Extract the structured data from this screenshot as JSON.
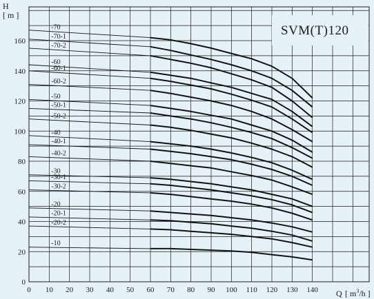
{
  "chart_data": {
    "type": "line",
    "title": "SVM(T)120",
    "xlabel": "Q",
    "xunit_pre": "[ m",
    "xunit_sup": "3",
    "xunit_post": "/h ]",
    "ylabel": "H",
    "yunit": "[ m ]",
    "xlim": [
      0,
      150
    ],
    "ylim": [
      0,
      176
    ],
    "xticks": [
      0,
      10,
      20,
      30,
      40,
      50,
      60,
      70,
      80,
      90,
      100,
      110,
      120,
      130,
      140
    ],
    "yticks": [
      0,
      20,
      40,
      60,
      80,
      100,
      120,
      140,
      160
    ],
    "grid": true,
    "colors": {
      "background": "#e6f1f7",
      "grid": "#1a1a1a",
      "curve": "#111111"
    },
    "series": [
      {
        "name": "-70",
        "thin": [
          [
            0,
            167
          ],
          [
            60,
            162
          ]
        ],
        "thick": [
          [
            60,
            162
          ],
          [
            70,
            160.5
          ],
          [
            80,
            158
          ],
          [
            90,
            155
          ],
          [
            100,
            151.5
          ],
          [
            110,
            148
          ],
          [
            120,
            143
          ],
          [
            130,
            135
          ],
          [
            140,
            122
          ]
        ]
      },
      {
        "name": "-70-1",
        "thin": [
          [
            0,
            161
          ],
          [
            60,
            156
          ]
        ],
        "thick": [
          [
            60,
            156
          ],
          [
            70,
            153.5
          ],
          [
            80,
            150.5
          ],
          [
            90,
            147.5
          ],
          [
            100,
            144
          ],
          [
            110,
            140
          ],
          [
            120,
            135
          ],
          [
            130,
            127
          ],
          [
            140,
            116
          ]
        ]
      },
      {
        "name": "-70-2",
        "thin": [
          [
            0,
            155
          ],
          [
            60,
            150
          ]
        ],
        "thick": [
          [
            60,
            150
          ],
          [
            70,
            147.5
          ],
          [
            80,
            145
          ],
          [
            90,
            142
          ],
          [
            100,
            138
          ],
          [
            110,
            134
          ],
          [
            120,
            129
          ],
          [
            130,
            120
          ],
          [
            140,
            109
          ]
        ]
      },
      {
        "name": "-60",
        "thin": [
          [
            0,
            144
          ],
          [
            60,
            139
          ]
        ],
        "thick": [
          [
            60,
            139
          ],
          [
            70,
            137
          ],
          [
            80,
            135
          ],
          [
            90,
            132
          ],
          [
            100,
            129
          ],
          [
            110,
            125
          ],
          [
            120,
            121
          ],
          [
            130,
            113
          ],
          [
            140,
            103
          ]
        ]
      },
      {
        "name": "-60-1",
        "thin": [
          [
            0,
            140
          ],
          [
            60,
            135
          ]
        ],
        "thick": [
          [
            60,
            135
          ],
          [
            70,
            133
          ],
          [
            80,
            130.5
          ],
          [
            90,
            128
          ],
          [
            100,
            124.5
          ],
          [
            110,
            120.5
          ],
          [
            120,
            116
          ],
          [
            130,
            108
          ],
          [
            140,
            99
          ]
        ]
      },
      {
        "name": "-60-2",
        "thin": [
          [
            0,
            131
          ],
          [
            60,
            127
          ]
        ],
        "thick": [
          [
            60,
            127
          ],
          [
            70,
            125
          ],
          [
            80,
            122.5
          ],
          [
            90,
            120
          ],
          [
            100,
            117
          ],
          [
            110,
            113
          ],
          [
            120,
            108
          ],
          [
            130,
            101
          ],
          [
            140,
            93
          ]
        ]
      },
      {
        "name": "-50",
        "thin": [
          [
            0,
            121
          ],
          [
            60,
            117
          ]
        ],
        "thick": [
          [
            60,
            117
          ],
          [
            70,
            115
          ],
          [
            80,
            113
          ],
          [
            90,
            110.5
          ],
          [
            100,
            108
          ],
          [
            110,
            104
          ],
          [
            120,
            100
          ],
          [
            130,
            94
          ],
          [
            140,
            86
          ]
        ]
      },
      {
        "name": "-50-1",
        "thin": [
          [
            0,
            115
          ],
          [
            60,
            112
          ]
        ],
        "thick": [
          [
            60,
            112
          ],
          [
            70,
            110
          ],
          [
            80,
            108
          ],
          [
            90,
            105.5
          ],
          [
            100,
            102.5
          ],
          [
            110,
            99
          ],
          [
            120,
            95
          ],
          [
            130,
            89
          ],
          [
            140,
            82
          ]
        ]
      },
      {
        "name": "-50-2",
        "thin": [
          [
            0,
            108
          ],
          [
            60,
            104
          ]
        ],
        "thick": [
          [
            60,
            104
          ],
          [
            70,
            102.5
          ],
          [
            80,
            100.5
          ],
          [
            90,
            98
          ],
          [
            100,
            95.5
          ],
          [
            110,
            92
          ],
          [
            120,
            88
          ],
          [
            130,
            83
          ],
          [
            140,
            76
          ]
        ]
      },
      {
        "name": "-40",
        "thin": [
          [
            0,
            97
          ],
          [
            60,
            93
          ]
        ],
        "thick": [
          [
            60,
            93
          ],
          [
            70,
            91.5
          ],
          [
            80,
            90
          ],
          [
            90,
            88
          ],
          [
            100,
            85.5
          ],
          [
            110,
            82.5
          ],
          [
            120,
            79
          ],
          [
            130,
            74
          ],
          [
            140,
            68
          ]
        ]
      },
      {
        "name": "-40-1",
        "thin": [
          [
            0,
            91
          ],
          [
            60,
            88
          ]
        ],
        "thick": [
          [
            60,
            88
          ],
          [
            70,
            86.5
          ],
          [
            80,
            85
          ],
          [
            90,
            83
          ],
          [
            100,
            81
          ],
          [
            110,
            78
          ],
          [
            120,
            74.5
          ],
          [
            130,
            70
          ],
          [
            140,
            64
          ]
        ]
      },
      {
        "name": "-40-2",
        "thin": [
          [
            0,
            83
          ],
          [
            60,
            80
          ]
        ],
        "thick": [
          [
            60,
            80
          ],
          [
            70,
            78.5
          ],
          [
            80,
            77
          ],
          [
            90,
            75.5
          ],
          [
            100,
            73
          ],
          [
            110,
            70.5
          ],
          [
            120,
            67.5
          ],
          [
            130,
            63
          ],
          [
            140,
            58
          ]
        ]
      },
      {
        "name": "-30",
        "thin": [
          [
            0,
            71
          ],
          [
            60,
            69
          ]
        ],
        "thick": [
          [
            60,
            69
          ],
          [
            70,
            68
          ],
          [
            80,
            66.5
          ],
          [
            90,
            65
          ],
          [
            100,
            63
          ],
          [
            110,
            61
          ],
          [
            120,
            58
          ],
          [
            130,
            55
          ],
          [
            140,
            50
          ]
        ]
      },
      {
        "name": "-30-1",
        "thin": [
          [
            0,
            67
          ],
          [
            60,
            65
          ]
        ],
        "thick": [
          [
            60,
            65
          ],
          [
            70,
            64
          ],
          [
            80,
            62.5
          ],
          [
            90,
            61
          ],
          [
            100,
            59
          ],
          [
            110,
            57
          ],
          [
            120,
            54.5
          ],
          [
            130,
            51
          ],
          [
            140,
            46
          ]
        ]
      },
      {
        "name": "-30-2",
        "thin": [
          [
            0,
            61
          ],
          [
            60,
            59
          ]
        ],
        "thick": [
          [
            60,
            59
          ],
          [
            70,
            58
          ],
          [
            80,
            56.5
          ],
          [
            90,
            55
          ],
          [
            100,
            53.5
          ],
          [
            110,
            51.5
          ],
          [
            120,
            49
          ],
          [
            130,
            45.5
          ],
          [
            140,
            41
          ]
        ]
      },
      {
        "name": "-20",
        "thin": [
          [
            0,
            49
          ],
          [
            60,
            47
          ]
        ],
        "thick": [
          [
            60,
            47
          ],
          [
            70,
            46
          ],
          [
            80,
            45
          ],
          [
            90,
            44
          ],
          [
            100,
            42.5
          ],
          [
            110,
            41
          ],
          [
            120,
            39
          ],
          [
            130,
            36.5
          ],
          [
            140,
            33
          ]
        ]
      },
      {
        "name": "-20-1",
        "thin": [
          [
            0,
            43
          ],
          [
            60,
            41
          ]
        ],
        "thick": [
          [
            60,
            41
          ],
          [
            70,
            40.5
          ],
          [
            80,
            39.5
          ],
          [
            90,
            38.5
          ],
          [
            100,
            37
          ],
          [
            110,
            35.5
          ],
          [
            120,
            33.5
          ],
          [
            130,
            31
          ],
          [
            140,
            27
          ]
        ]
      },
      {
        "name": "-20-2",
        "thin": [
          [
            0,
            37
          ],
          [
            60,
            35
          ]
        ],
        "thick": [
          [
            60,
            35
          ],
          [
            70,
            34.5
          ],
          [
            80,
            33.5
          ],
          [
            90,
            32.5
          ],
          [
            100,
            31.5
          ],
          [
            110,
            30
          ],
          [
            120,
            28.5
          ],
          [
            130,
            26
          ],
          [
            140,
            23
          ]
        ]
      },
      {
        "name": "-10",
        "thin": [
          [
            0,
            23
          ],
          [
            60,
            22
          ]
        ],
        "thick": [
          [
            60,
            22
          ],
          [
            70,
            22
          ],
          [
            80,
            21.5
          ],
          [
            90,
            21
          ],
          [
            100,
            20.5
          ],
          [
            110,
            19.5
          ],
          [
            120,
            18
          ],
          [
            130,
            16.5
          ],
          [
            140,
            14.5
          ]
        ]
      }
    ]
  }
}
